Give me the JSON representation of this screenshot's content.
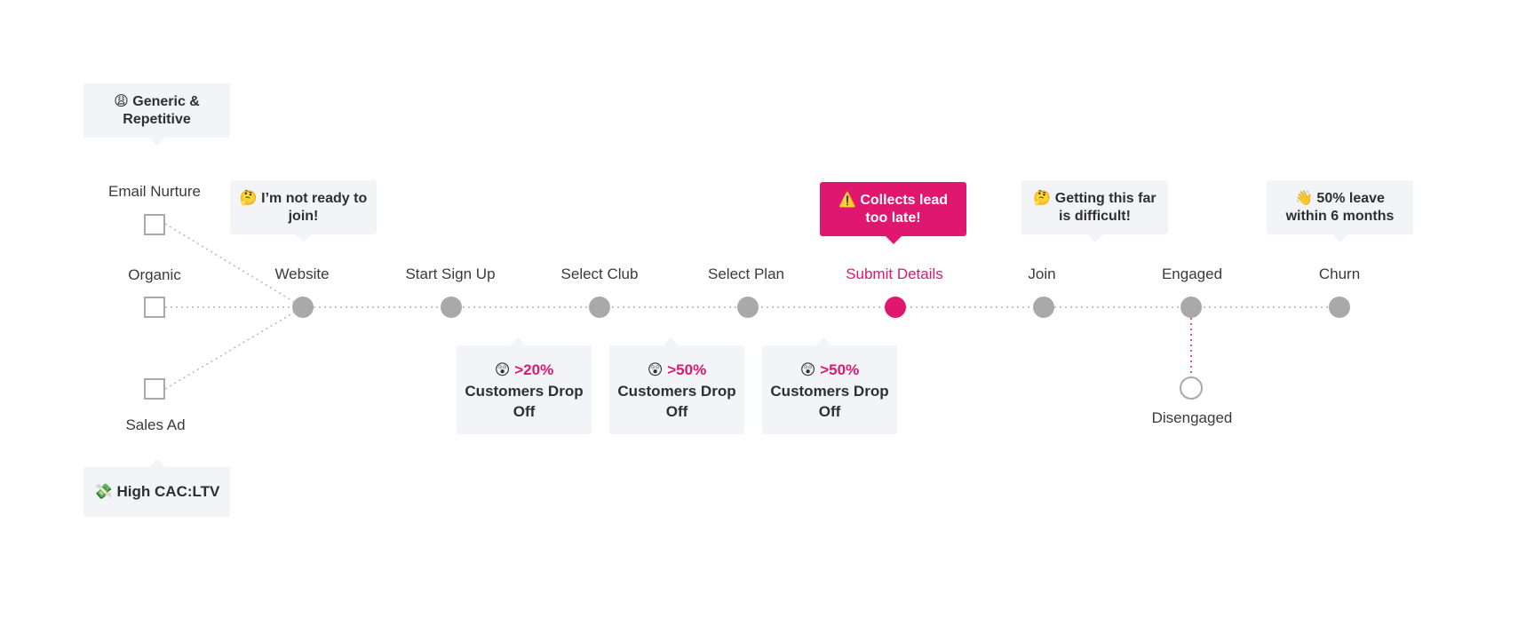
{
  "sources": [
    {
      "key": "email",
      "label": "Email Nurture"
    },
    {
      "key": "organic",
      "label": "Organic"
    },
    {
      "key": "sales",
      "label": "Sales Ad"
    }
  ],
  "stages": [
    {
      "key": "website",
      "label": "Website"
    },
    {
      "key": "start",
      "label": "Start Sign Up"
    },
    {
      "key": "club",
      "label": "Select Club"
    },
    {
      "key": "plan",
      "label": "Select Plan"
    },
    {
      "key": "submit",
      "label": "Submit Details",
      "highlight": true
    },
    {
      "key": "join",
      "label": "Join"
    },
    {
      "key": "engaged",
      "label": "Engaged"
    },
    {
      "key": "churn",
      "label": "Churn"
    }
  ],
  "branch": {
    "label": "Disengaged"
  },
  "callouts": {
    "email": {
      "icon": "😩",
      "text": "Generic & Repetitive"
    },
    "sales": {
      "icon": "💸",
      "text": "High CAC:LTV"
    },
    "website": {
      "icon": "🤔",
      "text": "I’m not ready to join!"
    },
    "submit": {
      "icon": "⚠️",
      "text": "Collects lead too late!"
    },
    "join": {
      "icon": "🤔",
      "text": "Getting this far is difficult!"
    },
    "churn": {
      "icon": "👋",
      "text": "50% leave within 6 months"
    }
  },
  "drop_offs": [
    {
      "icon": "😲",
      "percent": ">20%",
      "text": "Customers Drop Off"
    },
    {
      "icon": "😲",
      "percent": ">50%",
      "text": "Customers Drop Off"
    },
    {
      "icon": "😲",
      "percent": ">50%",
      "text": "Customers Drop Off"
    }
  ],
  "colors": {
    "accent": "#e0176f",
    "node": "#a9a9a9",
    "callout_bg": "#f3f4f7"
  }
}
